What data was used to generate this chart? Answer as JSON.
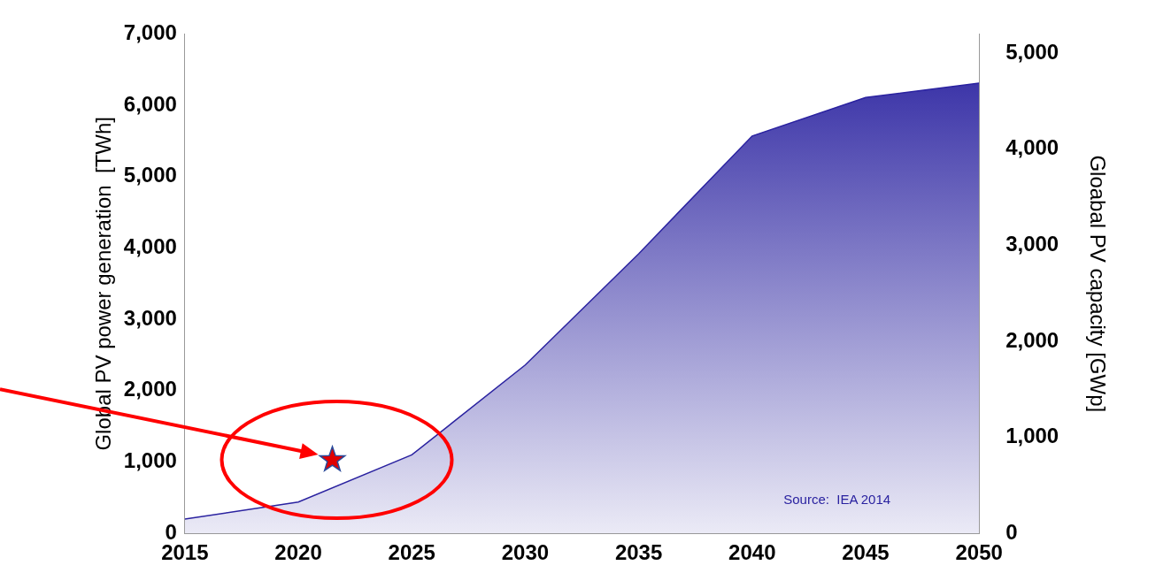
{
  "chart_data": {
    "type": "area",
    "x": [
      2015,
      2020,
      2025,
      2030,
      2035,
      2040,
      2045,
      2050
    ],
    "series": [
      {
        "color": "#2a22a0",
        "values": [
          200,
          440,
          1100,
          2360,
          3920,
          5570,
          6110,
          6310
        ]
      },
      {
        "type": "scatter",
        "color": "#e00000",
        "marker": "star",
        "x": [
          2021.5
        ],
        "values": [
          1030
        ]
      }
    ],
    "xlim": [
      2015,
      2050
    ],
    "xticks": [
      2015,
      2020,
      2025,
      2030,
      2035,
      2040,
      2045,
      2050
    ],
    "ylim": [
      0,
      7000
    ],
    "yticks": [
      0,
      {
        "value": 1000,
        "label": "1,000"
      },
      {
        "value": 2000,
        "label": "2,000"
      },
      {
        "value": 3000,
        "label": "3,000"
      },
      {
        "value": 4000,
        "label": "4,000"
      },
      {
        "value": 5000,
        "label": "5,000"
      },
      {
        "value": 6000,
        "label": "6,000"
      },
      {
        "value": 7000,
        "label": "7,000"
      }
    ],
    "y2lim": [
      0,
      5200
    ],
    "y2ticks": [
      0,
      {
        "value": 1000,
        "label": "1,000"
      },
      {
        "value": 2000,
        "label": "2,000"
      },
      {
        "value": 3000,
        "label": "3,000"
      },
      {
        "value": 4000,
        "label": "4,000"
      },
      {
        "value": 5000,
        "label": "5,000"
      }
    ],
    "ylabel": "Global PV power generation  [TWh]",
    "y2label": "Gloabal PV capacity [GWp]",
    "annotations": [
      "Source:  IEA 2014"
    ],
    "grid": false,
    "legend": false
  }
}
